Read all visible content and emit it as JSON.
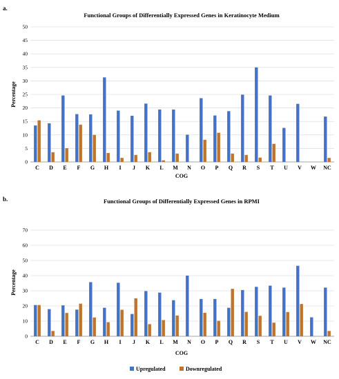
{
  "legend": {
    "upregulated": "Upregulated",
    "downregulated": "Downregulated"
  },
  "colors": {
    "upregulated": "#4472C4",
    "downregulated": "#C0732C",
    "grid": "#d4d4d4",
    "axis": "#8c8c8c"
  },
  "chart_data": [
    {
      "panel_label": "a.",
      "type": "bar",
      "title": "Functional Groups of Differentially Expressed Genes in Keratinocyte Medium",
      "xlabel": "COG",
      "ylabel": "Percentage",
      "ylim": [
        0,
        50
      ],
      "yticks": [
        0,
        5,
        10,
        15,
        20,
        25,
        30,
        35,
        40,
        45,
        50
      ],
      "grid": true,
      "categories": [
        "C",
        "D",
        "E",
        "F",
        "G",
        "H",
        "I",
        "J",
        "K",
        "L",
        "M",
        "N",
        "O",
        "P",
        "Q",
        "R",
        "S",
        "T",
        "U",
        "V",
        "W",
        "NC"
      ],
      "series": [
        {
          "name": "Upregulated",
          "values": [
            13.5,
            14.3,
            24.6,
            17.7,
            17.6,
            31.3,
            19.0,
            17.1,
            21.6,
            19.4,
            19.4,
            10.1,
            23.6,
            17.2,
            18.8,
            24.9,
            35.0,
            24.6,
            12.6,
            21.5,
            0,
            16.8
          ]
        },
        {
          "name": "Downregulated",
          "values": [
            15.4,
            3.6,
            5.1,
            13.8,
            10.0,
            3.3,
            1.5,
            2.6,
            3.6,
            0.6,
            3.1,
            0,
            8.2,
            10.8,
            3.1,
            2.6,
            1.6,
            6.7,
            0,
            0,
            0,
            1.5
          ]
        }
      ]
    },
    {
      "panel_label": "b.",
      "type": "bar",
      "title": "Functional Groups of Differentially Expressed Genes in RPMI",
      "xlabel": "COG",
      "ylabel": "Percentage",
      "ylim": [
        0,
        70
      ],
      "yticks": [
        0,
        10,
        20,
        30,
        40,
        50,
        60,
        70
      ],
      "grid": true,
      "categories": [
        "C",
        "D",
        "E",
        "F",
        "G",
        "H",
        "I",
        "J",
        "K",
        "L",
        "M",
        "N",
        "O",
        "P",
        "Q",
        "R",
        "S",
        "T",
        "U",
        "V",
        "W",
        "NC"
      ],
      "series": [
        {
          "name": "Upregulated",
          "values": [
            20.6,
            17.9,
            20.4,
            17.6,
            35.7,
            18.8,
            35.3,
            14.7,
            29.8,
            28.8,
            23.8,
            40.0,
            24.6,
            24.6,
            18.8,
            30.5,
            32.6,
            33.4,
            32.1,
            46.5,
            12.5,
            32.1
          ]
        },
        {
          "name": "Downregulated",
          "values": [
            20.6,
            3.5,
            15.4,
            21.5,
            12.4,
            9.3,
            17.5,
            25.0,
            8.0,
            10.7,
            13.7,
            0,
            15.5,
            10.2,
            31.3,
            16.1,
            13.5,
            9.0,
            16.0,
            21.3,
            0,
            3.5
          ]
        }
      ]
    }
  ]
}
